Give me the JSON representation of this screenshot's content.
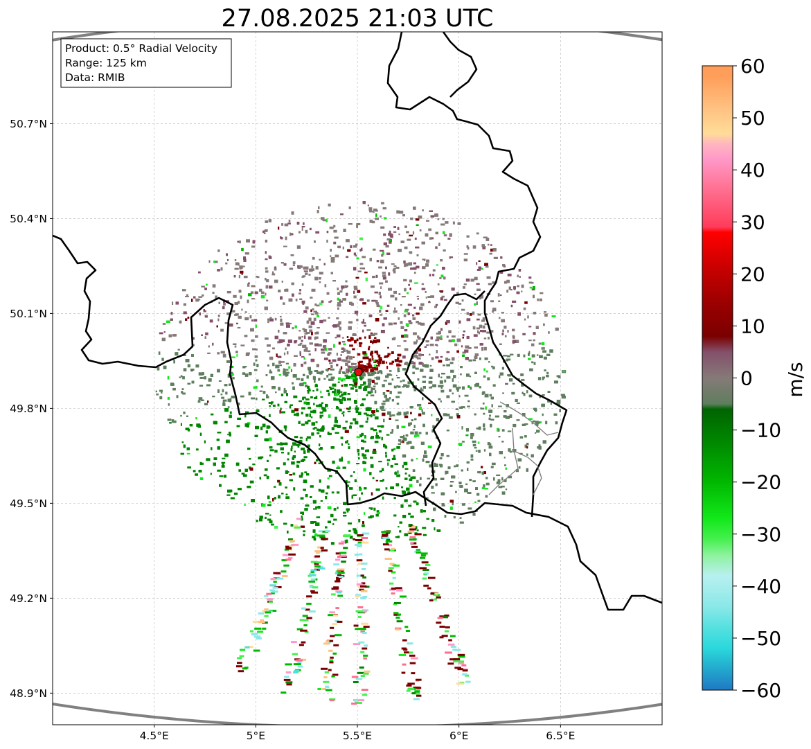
{
  "title": "27.08.2025 21:03 UTC",
  "info_box": {
    "line1": "Product: 0.5° Radial Velocity",
    "line2": "Range: 125 km",
    "line3": "Data: RMIB"
  },
  "map": {
    "lon_range": [
      4.0,
      7.0
    ],
    "lat_range": [
      48.8,
      50.99
    ],
    "lon_ticks": [
      {
        "value": 4.5,
        "label": "4.5°E"
      },
      {
        "value": 5.0,
        "label": "5°E"
      },
      {
        "value": 5.5,
        "label": "5.5°E"
      },
      {
        "value": 6.0,
        "label": "6°E"
      },
      {
        "value": 6.5,
        "label": "6.5°E"
      }
    ],
    "lat_ticks": [
      {
        "value": 50.7,
        "label": "50.7°N"
      },
      {
        "value": 50.4,
        "label": "50.4°N"
      },
      {
        "value": 50.1,
        "label": "50.1°N"
      },
      {
        "value": 49.8,
        "label": "49.8°N"
      },
      {
        "value": 49.5,
        "label": "49.5°N"
      },
      {
        "value": 49.2,
        "label": "49.2°N"
      },
      {
        "value": 48.9,
        "label": "48.9°N"
      }
    ],
    "grid": true,
    "radar_site": {
      "lon": 5.505,
      "lat": 49.915
    },
    "range_ring_km": 125,
    "colors": {
      "border": "#000000",
      "minor_border": "#808080",
      "range_ring": "#808080",
      "site_marker": "#dd1111"
    }
  },
  "colorbar": {
    "label": "m/s",
    "min": -60,
    "max": 60,
    "ticks": [
      {
        "value": 60,
        "label": "60"
      },
      {
        "value": 50,
        "label": "50"
      },
      {
        "value": 40,
        "label": "40"
      },
      {
        "value": 30,
        "label": "30"
      },
      {
        "value": 20,
        "label": "20"
      },
      {
        "value": 10,
        "label": "10"
      },
      {
        "value": 0,
        "label": "0"
      },
      {
        "value": -10,
        "label": "−10"
      },
      {
        "value": -20,
        "label": "−20"
      },
      {
        "value": -30,
        "label": "−30"
      },
      {
        "value": -40,
        "label": "−40"
      },
      {
        "value": -50,
        "label": "−50"
      },
      {
        "value": -60,
        "label": "−60"
      }
    ],
    "stops": [
      {
        "value": -60,
        "color": "#1f78c4"
      },
      {
        "value": -55,
        "color": "#24b4d0"
      },
      {
        "value": -52,
        "color": "#2ad8dc"
      },
      {
        "value": -48,
        "color": "#55e0e0"
      },
      {
        "value": -44,
        "color": "#8ae8e8"
      },
      {
        "value": -38,
        "color": "#b8f0f0"
      },
      {
        "value": -34,
        "color": "#8cf29c"
      },
      {
        "value": -31,
        "color": "#45f04f"
      },
      {
        "value": -27,
        "color": "#12e81a"
      },
      {
        "value": -20,
        "color": "#00b800"
      },
      {
        "value": -12,
        "color": "#008600"
      },
      {
        "value": -6,
        "color": "#006400"
      },
      {
        "value": -5,
        "color": "#5e7e5e"
      },
      {
        "value": 0,
        "color": "#857a78"
      },
      {
        "value": 5,
        "color": "#84506a"
      },
      {
        "value": 8,
        "color": "#7a0000"
      },
      {
        "value": 14,
        "color": "#990000"
      },
      {
        "value": 20,
        "color": "#c00000"
      },
      {
        "value": 28,
        "color": "#ff0000"
      },
      {
        "value": 29,
        "color": "#ff3b5a"
      },
      {
        "value": 36,
        "color": "#ff6e8e"
      },
      {
        "value": 42,
        "color": "#ff98c8"
      },
      {
        "value": 45,
        "color": "#ffb6c0"
      },
      {
        "value": 47,
        "color": "#ffdc98"
      },
      {
        "value": 52,
        "color": "#ffc080"
      },
      {
        "value": 58,
        "color": "#ff9e5a"
      }
    ]
  }
}
